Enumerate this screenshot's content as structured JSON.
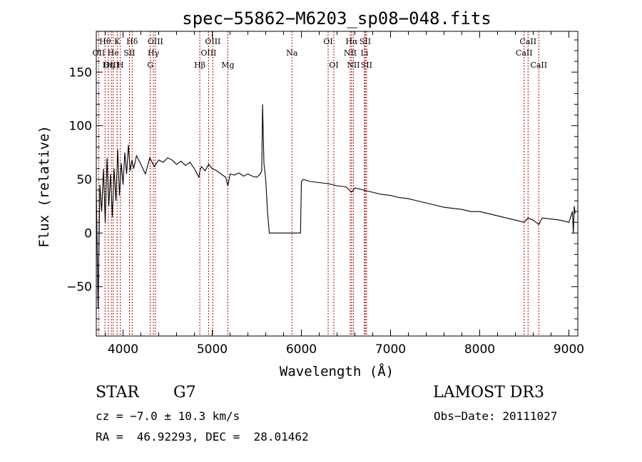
{
  "chart_data": {
    "type": "line",
    "title": "spec−55862−M6203_sp08−048.fits",
    "xlabel": "Wavelength (Å)",
    "ylabel": "Flux (relative)",
    "xlim": [
      3700,
      9100
    ],
    "ylim": [
      -96,
      188
    ],
    "x_ticks": [
      4000,
      5000,
      6000,
      7000,
      8000,
      9000
    ],
    "y_ticks": [
      -50,
      0,
      50,
      100,
      150
    ],
    "y_tick_labels": [
      "−50",
      "0",
      "50",
      "100",
      "150"
    ],
    "series": [
      {
        "name": "spectrum",
        "x": [
          3700,
          3720,
          3740,
          3760,
          3780,
          3800,
          3820,
          3840,
          3860,
          3880,
          3900,
          3920,
          3940,
          3960,
          3980,
          4000,
          4020,
          4040,
          4060,
          4080,
          4100,
          4120,
          4150,
          4200,
          4250,
          4300,
          4350,
          4400,
          4450,
          4500,
          4550,
          4600,
          4650,
          4700,
          4750,
          4800,
          4850,
          4862,
          4880,
          4920,
          4960,
          5000,
          5050,
          5100,
          5150,
          5175,
          5200,
          5250,
          5300,
          5350,
          5400,
          5450,
          5500,
          5540,
          5555,
          5565,
          5580,
          5600,
          5620,
          5640,
          5700,
          5800,
          5900,
          5960,
          5990,
          6000,
          6020,
          6100,
          6200,
          6300,
          6400,
          6500,
          6563,
          6600,
          6700,
          6800,
          6900,
          7000,
          7100,
          7200,
          7300,
          7400,
          7500,
          7600,
          7700,
          7800,
          7900,
          8000,
          8100,
          8200,
          8300,
          8400,
          8498,
          8542,
          8600,
          8662,
          8700,
          8800,
          8900,
          9000,
          9040,
          9050,
          9060,
          9070
        ],
        "y": [
          40,
          -70,
          45,
          20,
          60,
          10,
          70,
          25,
          55,
          15,
          60,
          30,
          78,
          35,
          65,
          45,
          75,
          55,
          82,
          58,
          68,
          60,
          72,
          64,
          55,
          70,
          62,
          68,
          66,
          70,
          68,
          64,
          67,
          63,
          66,
          60,
          52,
          58,
          62,
          58,
          64,
          60,
          58,
          55,
          52,
          44,
          55,
          54,
          56,
          53,
          55,
          53,
          52,
          55,
          58,
          120,
          65,
          50,
          20,
          0,
          0,
          0,
          0,
          0,
          0,
          48,
          50,
          48,
          47,
          46,
          44,
          43,
          38,
          42,
          40,
          38,
          36,
          35,
          33,
          32,
          30,
          28,
          26,
          24,
          23,
          22,
          20,
          20,
          18,
          16,
          14,
          12,
          10,
          14,
          12,
          8,
          14,
          13,
          12,
          10,
          20,
          0,
          25,
          18
        ]
      }
    ],
    "spectral_lines": [
      {
        "label": "Hθ",
        "wavelength": 3798,
        "row": 1
      },
      {
        "label": "OII",
        "wavelength": 3727,
        "row": 2
      },
      {
        "label": "OIII",
        "wavelength": 3869,
        "row": 3
      },
      {
        "label": "He",
        "wavelength": 3889,
        "row": 2
      },
      {
        "label": "Hη",
        "wavelength": 3835,
        "row": 3
      },
      {
        "label": "K",
        "wavelength": 3934,
        "row": 1
      },
      {
        "label": "H",
        "wavelength": 3969,
        "row": 3
      },
      {
        "label": "SII",
        "wavelength": 4072,
        "row": 2
      },
      {
        "label": "Hδ",
        "wavelength": 4102,
        "row": 1
      },
      {
        "label": "OIII",
        "wavelength": 4363,
        "row": 1
      },
      {
        "label": "Hγ",
        "wavelength": 4341,
        "row": 2
      },
      {
        "label": "G",
        "wavelength": 4305,
        "row": 3
      },
      {
        "label": "Hβ",
        "wavelength": 4861,
        "row": 3
      },
      {
        "label": "OIII",
        "wavelength": 5007,
        "row": 1
      },
      {
        "label": "OIII",
        "wavelength": 4959,
        "row": 2
      },
      {
        "label": "Mg",
        "wavelength": 5175,
        "row": 3
      },
      {
        "label": "Na",
        "wavelength": 5894,
        "row": 2
      },
      {
        "label": "OI",
        "wavelength": 6300,
        "row": 1
      },
      {
        "label": "OI",
        "wavelength": 6364,
        "row": 3
      },
      {
        "label": "Hα",
        "wavelength": 6563,
        "row": 1
      },
      {
        "label": "NII",
        "wavelength": 6548,
        "row": 2
      },
      {
        "label": "NII",
        "wavelength": 6583,
        "row": 3
      },
      {
        "label": "SII",
        "wavelength": 6716,
        "row": 1
      },
      {
        "label": "Li",
        "wavelength": 6707,
        "row": 2
      },
      {
        "label": "SII",
        "wavelength": 6731,
        "row": 3
      },
      {
        "label": "CaII",
        "wavelength": 8542,
        "row": 1
      },
      {
        "label": "CaII",
        "wavelength": 8498,
        "row": 2
      },
      {
        "label": "CaII",
        "wavelength": 8662,
        "row": 3
      }
    ]
  },
  "info": {
    "object_class": "STAR",
    "subclass": "G7",
    "survey": "LAMOST DR3",
    "cz": "cz = −7.0 ± 10.3 km/s",
    "obs_date": "Obs−Date: 20111027",
    "coords": "RA =  46.92293, DEC =  28.01462"
  }
}
